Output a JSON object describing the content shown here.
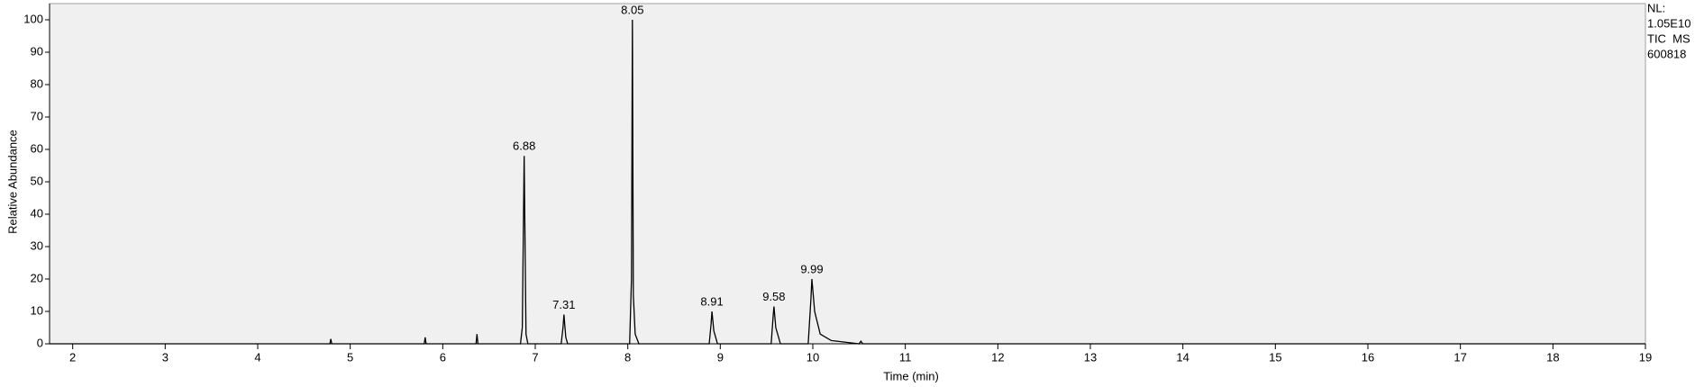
{
  "chart_data": {
    "type": "line",
    "x_label": "Time (min)",
    "y_label": "Relative Abundance",
    "annotations": [
      "NL:",
      "1.05E10",
      "TIC  MS",
      "600818"
    ],
    "x": [
      1.75,
      4.78,
      4.79,
      4.8,
      5.8,
      5.81,
      5.82,
      6.36,
      6.37,
      6.38,
      6.84,
      6.86,
      6.88,
      6.9,
      6.92,
      7.28,
      7.3,
      7.31,
      7.33,
      7.35,
      8.02,
      8.04,
      8.05,
      8.06,
      8.08,
      8.12,
      8.88,
      8.9,
      8.91,
      8.93,
      8.97,
      9.55,
      9.57,
      9.58,
      9.6,
      9.65,
      9.95,
      9.98,
      9.99,
      10.02,
      10.08,
      10.2,
      10.5,
      10.52,
      10.54,
      19
    ],
    "series": [
      {
        "color": "#000000",
        "values": [
          0,
          0,
          1.5,
          0,
          0,
          2,
          0,
          0,
          3,
          0,
          0,
          5,
          58,
          3,
          0,
          0,
          5,
          9,
          2,
          0,
          0,
          20,
          100,
          15,
          3,
          0,
          0,
          6,
          10,
          4,
          0,
          0,
          8,
          11.5,
          5,
          0,
          0,
          14,
          20,
          10,
          3,
          1,
          0,
          0.8,
          0,
          0
        ]
      }
    ],
    "peak_labels": [
      {
        "x": 6.88,
        "y": 58
      },
      {
        "x": 7.31,
        "y": 9
      },
      {
        "x": 8.05,
        "y": 100
      },
      {
        "x": 8.91,
        "y": 10
      },
      {
        "x": 9.58,
        "y": 11.5
      },
      {
        "x": 9.99,
        "y": 20
      }
    ],
    "xlim": [
      1.75,
      19
    ],
    "ylim": [
      0,
      105
    ],
    "xticks": [
      2,
      3,
      4,
      5,
      6,
      7,
      8,
      9,
      10,
      11,
      12,
      13,
      14,
      15,
      16,
      17,
      18,
      19
    ],
    "yticks": [
      0,
      10,
      20,
      30,
      40,
      50,
      60,
      70,
      80,
      90,
      100
    ],
    "background": "#f0f0f0"
  }
}
